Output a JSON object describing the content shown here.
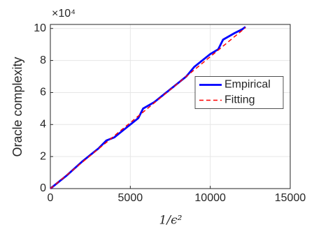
{
  "chart_data": {
    "type": "line",
    "x_label": "1/ϵ²",
    "y_label": "Oracle complexity",
    "y_multiplier": "×10⁴",
    "xlim": [
      0,
      15000
    ],
    "xticks": [
      0,
      5000,
      10000,
      15000
    ],
    "ylim": [
      0,
      10.25
    ],
    "yticks": [
      0,
      2,
      4,
      6,
      8,
      10
    ],
    "grid": true,
    "legend": "east",
    "series": [
      {
        "name": "Empirical",
        "color": "#0000ff",
        "style": "solid",
        "x": [
          0,
          1000,
          2000,
          3000,
          3500,
          4000,
          4500,
          5000,
          5500,
          5800,
          6500,
          7000,
          8000,
          8500,
          9000,
          9500,
          10000,
          10500,
          10800,
          11500,
          12000,
          12200
        ],
        "values": [
          0,
          0.8,
          1.7,
          2.5,
          3.0,
          3.2,
          3.6,
          4.0,
          4.4,
          5.0,
          5.4,
          5.8,
          6.6,
          7.0,
          7.6,
          8.0,
          8.4,
          8.7,
          9.3,
          9.7,
          9.95,
          10.1
        ]
      },
      {
        "name": "Fitting",
        "color": "#ff0000",
        "style": "dashed",
        "x": [
          0,
          12200
        ],
        "values": [
          0,
          10.05
        ]
      }
    ]
  }
}
